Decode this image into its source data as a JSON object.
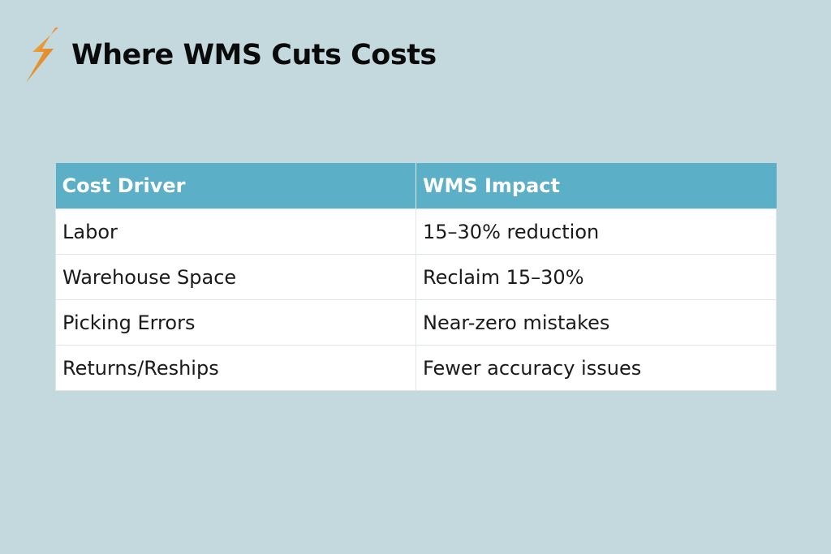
{
  "header": {
    "title": "Where WMS Cuts Costs",
    "icon": "lightning-bolt-icon"
  },
  "table": {
    "columns": [
      "Cost Driver",
      "WMS Impact"
    ],
    "rows": [
      [
        "Labor",
        "15–30% reduction"
      ],
      [
        "Warehouse Space",
        "Reclaim 15–30%"
      ],
      [
        "Picking Errors",
        "Near-zero mistakes"
      ],
      [
        "Returns/Reships",
        "Fewer accuracy issues"
      ]
    ]
  },
  "colors": {
    "background": "#c4d9dd",
    "header_row": "#5bafc7",
    "bolt": "#e08b2a"
  }
}
